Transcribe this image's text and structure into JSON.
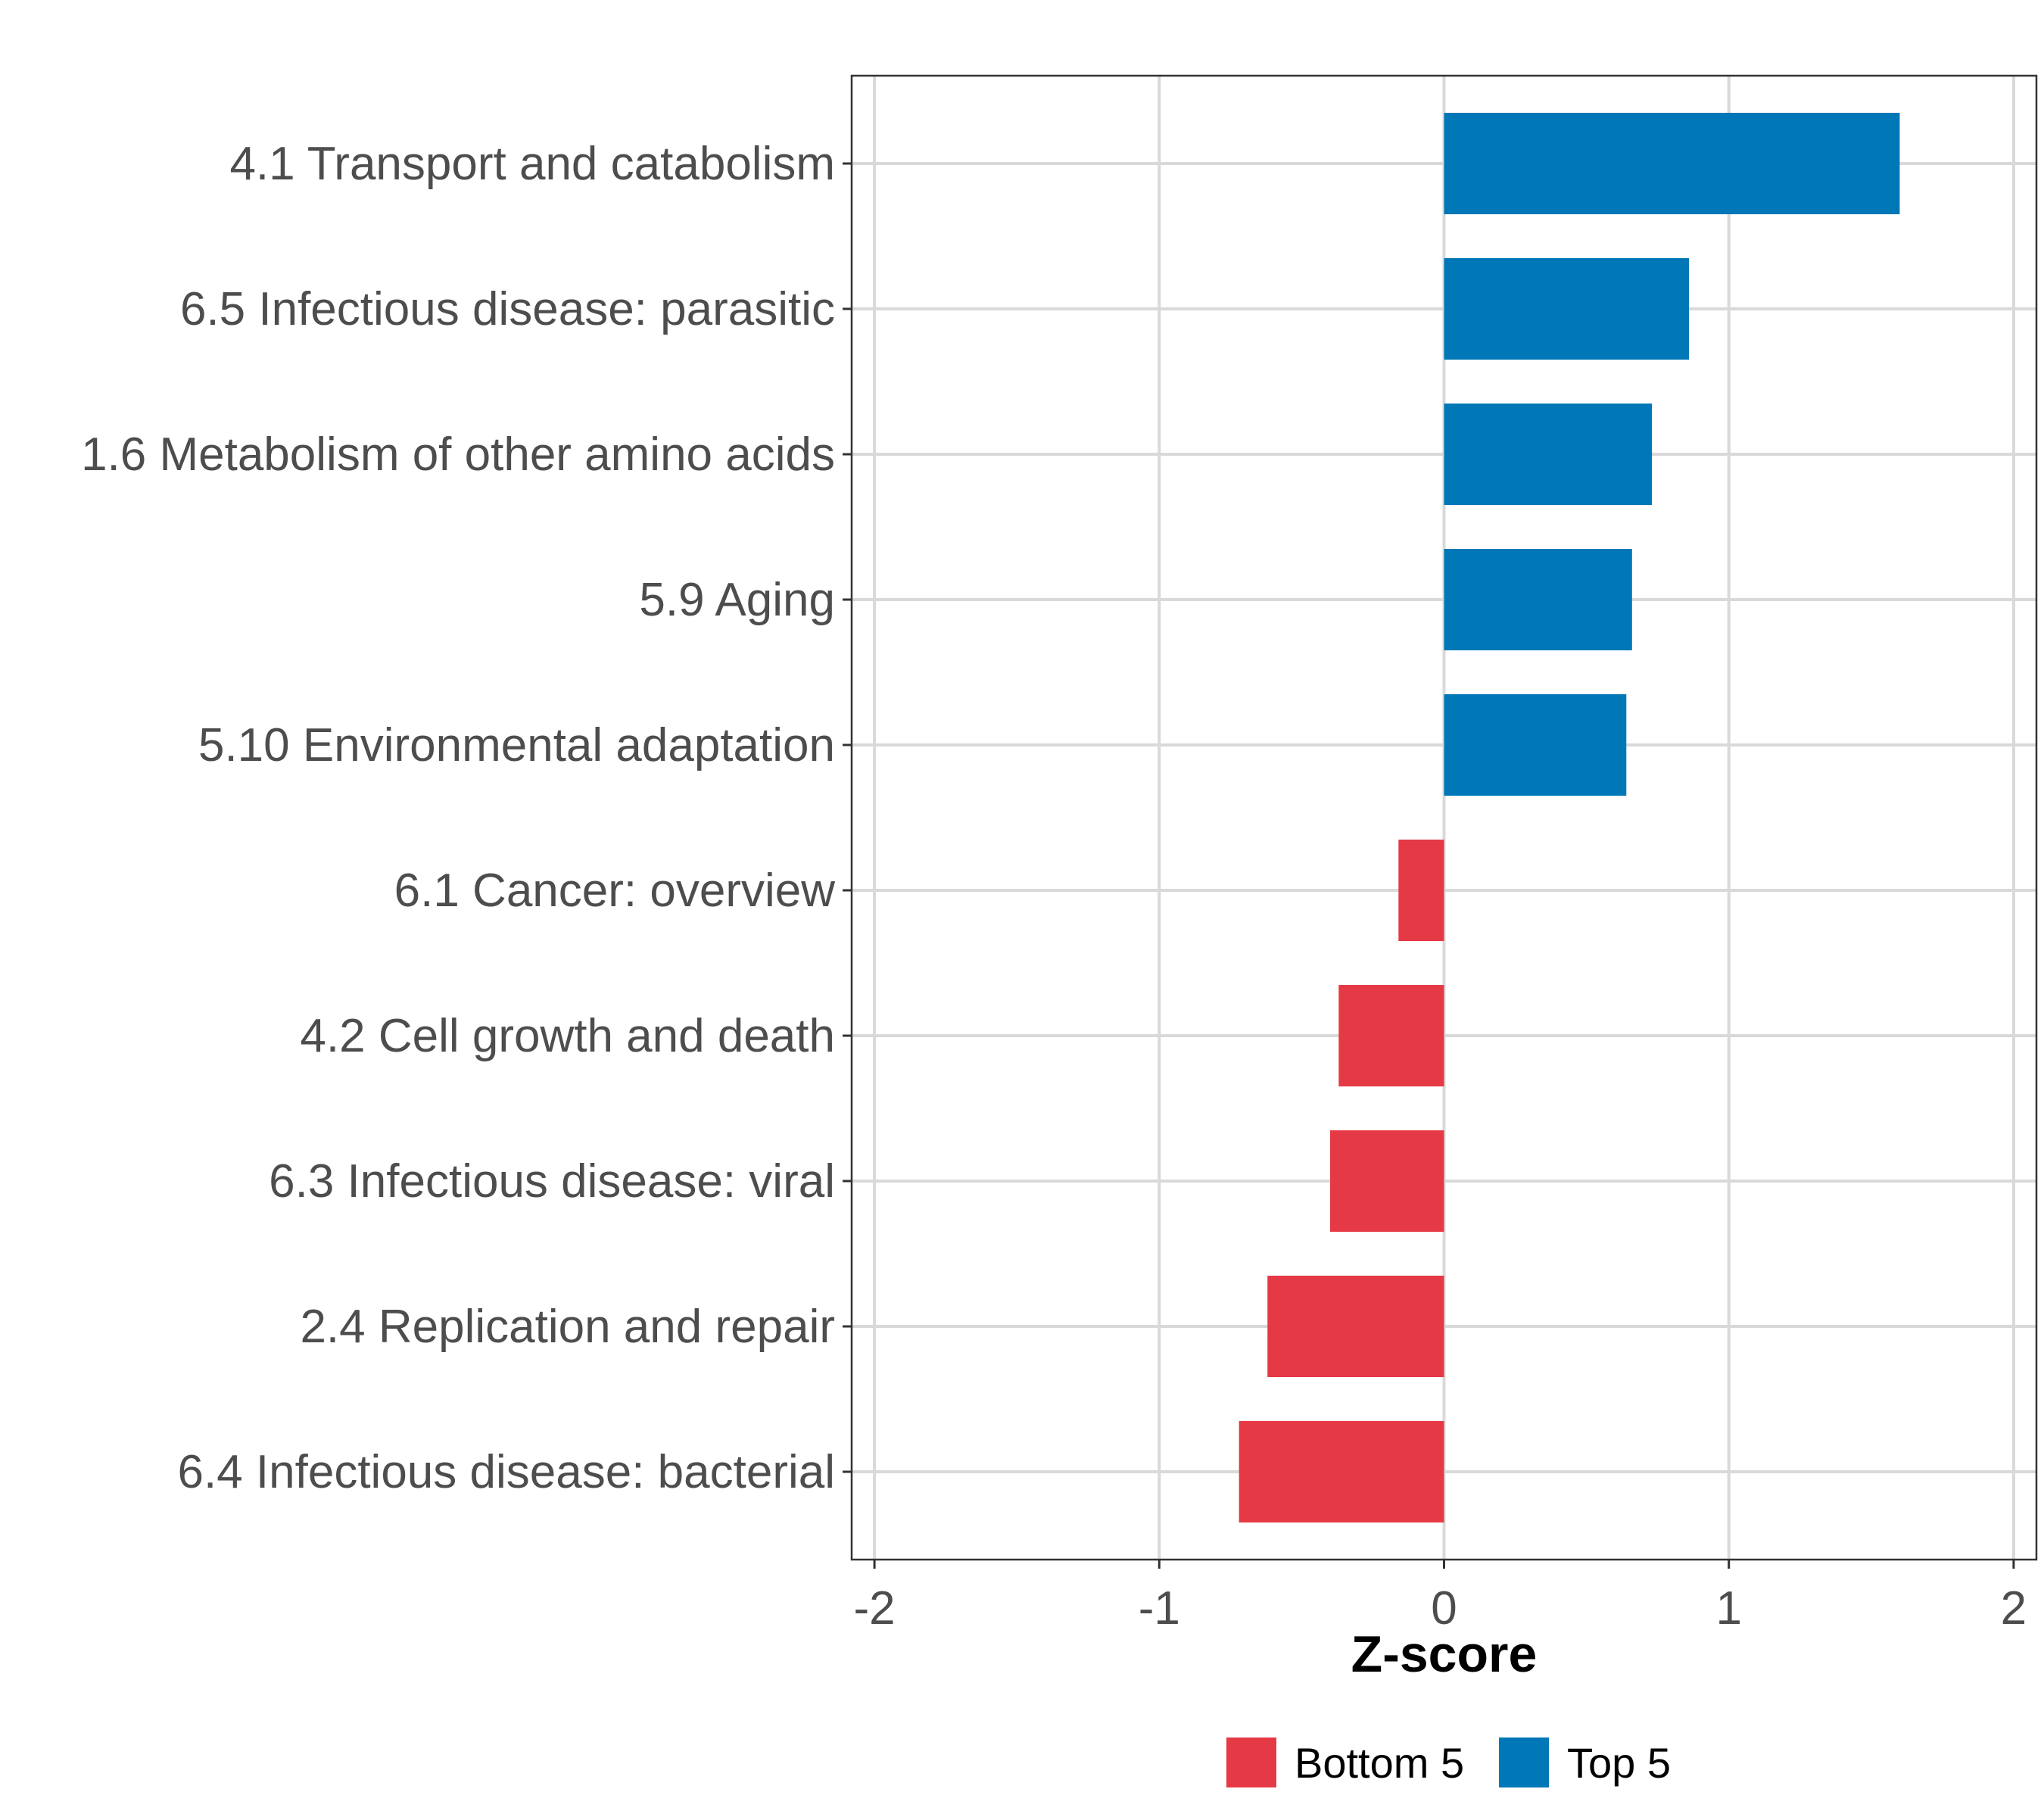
{
  "chart_data": {
    "type": "bar",
    "orientation": "horizontal",
    "xlabel": "Z-score",
    "ylabel": "",
    "xlim": [
      -2.08,
      2.08
    ],
    "xticks": [
      -2,
      -1,
      0,
      1,
      2
    ],
    "xtick_labels": [
      "-2",
      "-1",
      "0",
      "1",
      "2"
    ],
    "grid": true,
    "legend_position": "bottom",
    "categories": [
      "4.1 Transport and catabolism",
      "6.5 Infectious disease: parasitic",
      "1.6 Metabolism of other amino acids",
      "5.9 Aging",
      "5.10 Environmental adaptation",
      "6.1 Cancer: overview",
      "4.2 Cell growth and death",
      "6.3 Infectious disease: viral",
      "2.4 Replication and repair",
      "6.4 Infectious disease: bacterial"
    ],
    "values": [
      1.6,
      0.86,
      0.73,
      0.66,
      0.64,
      -0.16,
      -0.37,
      -0.4,
      -0.62,
      -0.72
    ],
    "groups": [
      "Top 5",
      "Top 5",
      "Top 5",
      "Top 5",
      "Top 5",
      "Bottom 5",
      "Bottom 5",
      "Bottom 5",
      "Bottom 5",
      "Bottom 5"
    ],
    "legend": [
      {
        "name": "Bottom 5",
        "color": "#E63946"
      },
      {
        "name": "Top 5",
        "color": "#0077B6"
      }
    ]
  },
  "colors": {
    "top": "#0077B6",
    "bottom": "#E63946",
    "grid": "#d9d9d9",
    "axis_text": "#4d4d4d"
  }
}
